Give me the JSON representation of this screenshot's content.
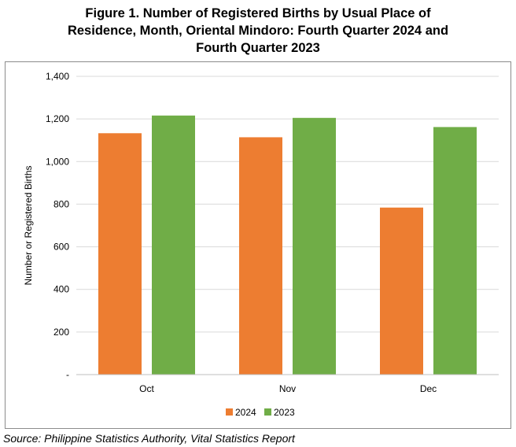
{
  "title_lines": [
    "Figure 1. Number of Registered Births by Usual Place of",
    "Residence, Month, Oriental Mindoro: Fourth Quarter 2024 and",
    "Fourth Quarter 2023"
  ],
  "source": "Source: Philippine Statistics Authority, Vital Statistics Report",
  "colors": {
    "series_2024": "#ED7D31",
    "series_2023": "#70AD47",
    "grid": "#D9D9D9",
    "axis": "#BFBFBF"
  },
  "chart_data": {
    "type": "bar",
    "title": "Figure 1. Number of Registered Births by Usual Place of Residence, Month, Oriental Mindoro: Fourth Quarter 2024 and Fourth Quarter 2023",
    "categories": [
      "Oct",
      "Nov",
      "Dec"
    ],
    "series": [
      {
        "name": "2024",
        "values": [
          1133,
          1114,
          784
        ]
      },
      {
        "name": "2023",
        "values": [
          1216,
          1205,
          1162
        ]
      }
    ],
    "xlabel": "",
    "ylabel": "Number or Registered Births",
    "ylim": [
      0,
      1400
    ],
    "yticks": [
      0,
      200,
      400,
      600,
      800,
      1000,
      1200,
      1400
    ],
    "ytick_labels": [
      "-",
      "200",
      "400",
      "600",
      "800",
      "1,000",
      "1,200",
      "1,400"
    ],
    "grid": true,
    "legend_position": "bottom"
  }
}
